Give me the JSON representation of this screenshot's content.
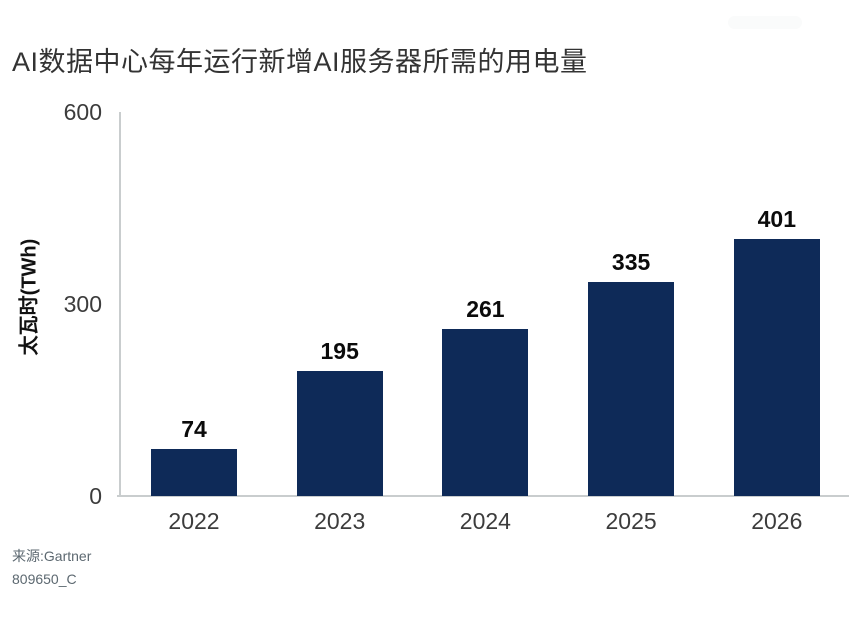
{
  "chart_data": {
    "type": "bar",
    "title": "AI数据中心每年运行新增AI服务器所需的用电量",
    "categories": [
      "2022",
      "2023",
      "2024",
      "2025",
      "2026"
    ],
    "values": [
      74,
      195,
      261,
      335,
      401
    ],
    "value_labels": [
      "74",
      "195",
      "261",
      "335",
      "401"
    ],
    "xlabel": "",
    "ylabel": "太瓦时(TWh)",
    "yticks": [
      0,
      300,
      600
    ],
    "ylim": [
      0,
      600
    ],
    "grid": false,
    "legend": "none",
    "bar_color": "#0e2a58"
  },
  "source_note": {
    "line1": "来源:Gartner",
    "line2": "809650_C"
  },
  "colors": {
    "bar": "#0e2a58",
    "axis_line": "#c9cdce",
    "title_text": "#333333",
    "tick_text": "#3c3c3c",
    "value_text": "#0b0b0b",
    "source_text": "#5c6870"
  }
}
